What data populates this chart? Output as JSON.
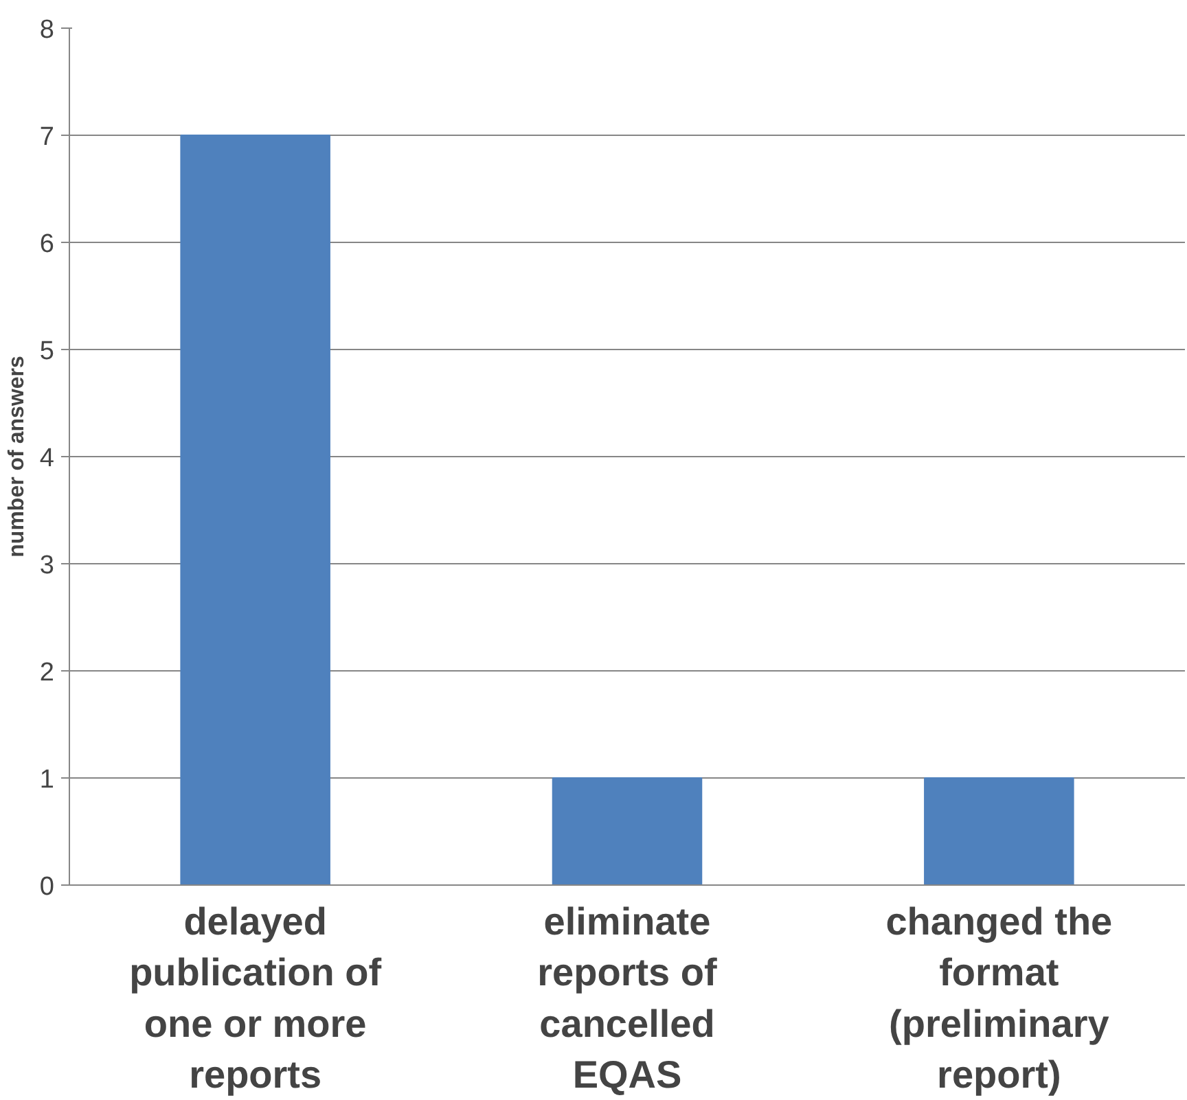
{
  "chart_data": {
    "type": "bar",
    "ylabel": "number of answers",
    "categories": [
      "delayed\npublication of\none or more\nreports",
      "eliminate\nreports of\ncancelled\nEQAS",
      "changed the\nformat\n(preliminary\nreport)"
    ],
    "values": [
      7,
      1,
      1
    ],
    "color": "#4f81bd",
    "ylim": [
      0,
      8
    ],
    "yticks": [
      0,
      1,
      2,
      3,
      4,
      5,
      6,
      7,
      8
    ],
    "grid": "y"
  }
}
